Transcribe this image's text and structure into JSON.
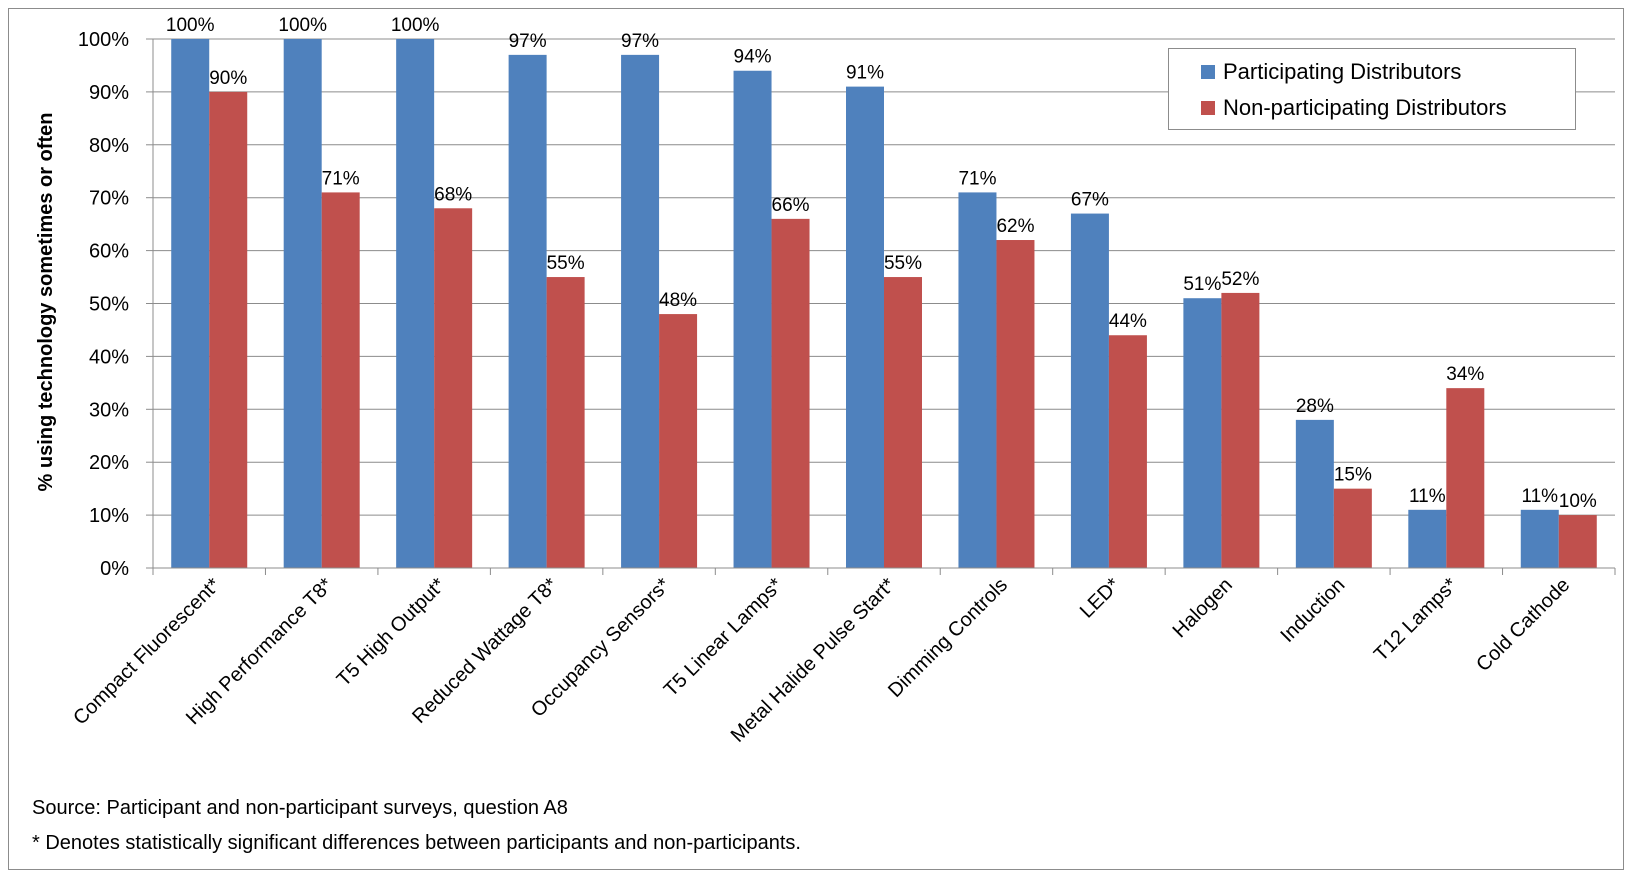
{
  "chart_data": {
    "type": "bar",
    "title": "",
    "xlabel": "",
    "ylabel": "% using technology sometimes or often",
    "ylim": [
      0,
      100
    ],
    "yticks": [
      "0%",
      "10%",
      "20%",
      "30%",
      "40%",
      "50%",
      "60%",
      "70%",
      "80%",
      "90%",
      "100%"
    ],
    "grid": true,
    "legend_position": "top-right",
    "categories": [
      "Compact Fluorescent*",
      "High Performance T8*",
      "T5 High Output*",
      "Reduced Wattage T8*",
      "Occupancy Sensors*",
      "T5 Linear Lamps*",
      "Metal Halide Pulse Start*",
      "Dimming Controls",
      "LED*",
      "Halogen",
      "Induction",
      "T12 Lamps*",
      "Cold Cathode"
    ],
    "series": [
      {
        "name": "Participating Distributors",
        "color": "#4F81BD",
        "values": [
          100,
          100,
          100,
          97,
          97,
          94,
          91,
          71,
          67,
          51,
          28,
          11,
          11
        ],
        "labels": [
          "100%",
          "100%",
          "100%",
          "97%",
          "97%",
          "94%",
          "91%",
          "71%",
          "67%",
          "51%",
          "28%",
          "11%",
          "11%"
        ]
      },
      {
        "name": "Non-participating Distributors",
        "color": "#C0504D",
        "values": [
          90,
          71,
          68,
          55,
          48,
          66,
          55,
          62,
          44,
          52,
          15,
          34,
          10
        ],
        "labels": [
          "90%",
          "71%",
          "68%",
          "55%",
          "48%",
          "66%",
          "55%",
          "62%",
          "44%",
          "52%",
          "15%",
          "34%",
          "10%"
        ]
      }
    ]
  },
  "notes": {
    "source": "Source: Participant and non-participant surveys, question A8",
    "footnote": "* Denotes statistically significant differences between participants and non-participants."
  }
}
